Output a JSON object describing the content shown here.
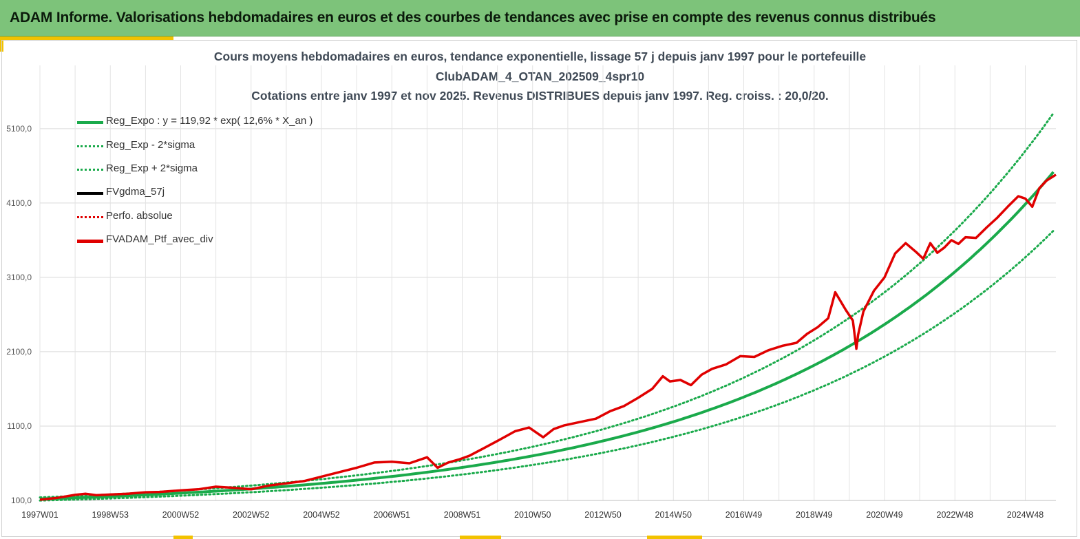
{
  "banner": {
    "title": "ADAM Informe. Valorisations hebdomadaires en euros et des courbes de tendances avec prise en compte des revenus connus distribués"
  },
  "colors": {
    "banner_bg": "#7dc37a",
    "accent": "#f2c200",
    "reg_green": "#1aaa4b",
    "fvgdma": "#000000",
    "perf": "#e00000"
  },
  "chart_data": {
    "type": "line",
    "title_lines": [
      "Cours moyens hebdomadaires  en euros, tendance exponentielle, lissage 57 j depuis janv 1997 pour le portefeuille",
      "ClubADAM_4_OTAN_202509_4spr10",
      "Cotations  entre janv 1997 et nov 2025. Revenus DISTRIBUES depuis janv 1997. Reg. croiss. : 20,0/20."
    ],
    "x_ticks": [
      "1997W01",
      "1998W53",
      "2000W52",
      "2002W52",
      "2004W52",
      "2006W51",
      "2008W51",
      "2010W50",
      "2012W50",
      "2014W50",
      "2016W49",
      "2018W49",
      "2020W49",
      "2022W48",
      "2024W48"
    ],
    "y_ticks": [
      "100,0",
      "1100,0",
      "2100,0",
      "3100,0",
      "4100,0",
      "5100,0"
    ],
    "y_tick_values": [
      100,
      1100,
      2100,
      3100,
      4100,
      5100
    ],
    "ylim": [
      100,
      5950
    ],
    "xlim": [
      1997.0,
      2025.87
    ],
    "grid": true,
    "legend_position": "top-left",
    "regression": {
      "a": 119.92,
      "rate": 0.126,
      "sigma_factor": 0.175
    },
    "series": [
      {
        "name": "Reg_Expo : y = 119,92 * exp( 12,6% *  X_an )",
        "style": "solid-green",
        "color": "#1aaa4b"
      },
      {
        "name": "Reg_Exp - 2*sigma",
        "style": "dotted-green",
        "color": "#1aaa4b"
      },
      {
        "name": "Reg_Exp + 2*sigma",
        "style": "dotted-green",
        "color": "#1aaa4b"
      },
      {
        "name": "FVgdma_57j",
        "style": "solid-black",
        "color": "#000000"
      },
      {
        "name": "Perfo. absolue",
        "style": "dotted-red",
        "color": "#e00000"
      },
      {
        "name": "FVADAM_Ptf_avec_div",
        "style": "solid-red",
        "color": "#e00000",
        "x": [
          1997.0,
          1997.5,
          1998.0,
          1998.3,
          1998.6,
          1999.0,
          1999.5,
          2000.0,
          2000.4,
          2001.0,
          2001.5,
          2002.0,
          2002.5,
          2003.0,
          2003.5,
          2004.0,
          2004.5,
          2005.0,
          2005.5,
          2006.0,
          2006.5,
          2007.0,
          2007.5,
          2008.0,
          2008.3,
          2008.6,
          2008.9,
          2009.2,
          2009.6,
          2010.0,
          2010.5,
          2010.9,
          2011.3,
          2011.6,
          2011.9,
          2012.3,
          2012.8,
          2013.2,
          2013.6,
          2014.0,
          2014.4,
          2014.7,
          2014.9,
          2015.2,
          2015.5,
          2015.8,
          2016.1,
          2016.5,
          2016.9,
          2017.3,
          2017.7,
          2018.1,
          2018.5,
          2018.8,
          2019.1,
          2019.4,
          2019.6,
          2019.9,
          2020.1,
          2020.2,
          2020.25,
          2020.4,
          2020.7,
          2021.0,
          2021.3,
          2021.6,
          2021.9,
          2022.1,
          2022.3,
          2022.5,
          2022.7,
          2022.9,
          2023.1,
          2023.3,
          2023.6,
          2023.9,
          2024.2,
          2024.5,
          2024.8,
          2025.0,
          2025.2,
          2025.4,
          2025.6,
          2025.87
        ],
        "y": [
          110,
          135,
          175,
          190,
          170,
          180,
          190,
          210,
          215,
          235,
          250,
          285,
          270,
          250,
          300,
          330,
          360,
          420,
          480,
          540,
          610,
          620,
          600,
          680,
          540,
          610,
          650,
          700,
          800,
          900,
          1030,
          1080,
          950,
          1060,
          1110,
          1150,
          1200,
          1300,
          1370,
          1480,
          1600,
          1770,
          1700,
          1720,
          1650,
          1790,
          1870,
          1930,
          2040,
          2030,
          2120,
          2180,
          2220,
          2340,
          2430,
          2550,
          2900,
          2660,
          2520,
          2140,
          2330,
          2640,
          2920,
          3100,
          3420,
          3560,
          3440,
          3350,
          3560,
          3430,
          3500,
          3600,
          3550,
          3640,
          3630,
          3770,
          3900,
          4050,
          4190,
          4160,
          4050,
          4300,
          4400,
          4480
        ]
      }
    ]
  }
}
